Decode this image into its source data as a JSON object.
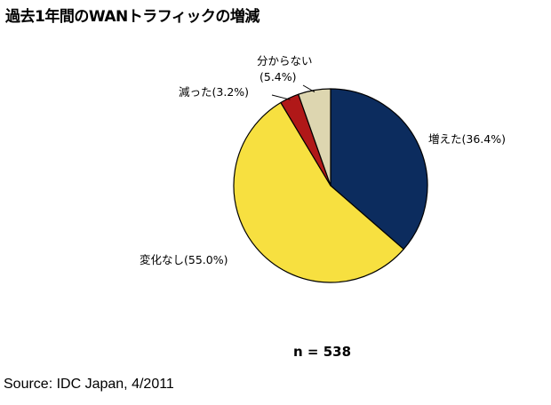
{
  "chart_data": {
    "type": "pie",
    "title": "過去1年間のWANトラフィックの増減",
    "slices": [
      {
        "label": "増えた",
        "value_label": "(36.4%)",
        "value": 36.4,
        "color": "#0c2c5e"
      },
      {
        "label": "変化なし",
        "value_label": "(55.0%)",
        "value": 55.0,
        "color": "#f7e040"
      },
      {
        "label": "減った",
        "value_label": "(3.2%)",
        "value": 3.2,
        "color": "#b01818"
      },
      {
        "label": "分からない",
        "value_label": "(5.4%)",
        "value": 5.4,
        "color": "#ddd6b0"
      }
    ],
    "start": "top",
    "direction": "clockwise",
    "sample_size": "n = 538"
  },
  "source": "Source: IDC Japan, 4/2011"
}
